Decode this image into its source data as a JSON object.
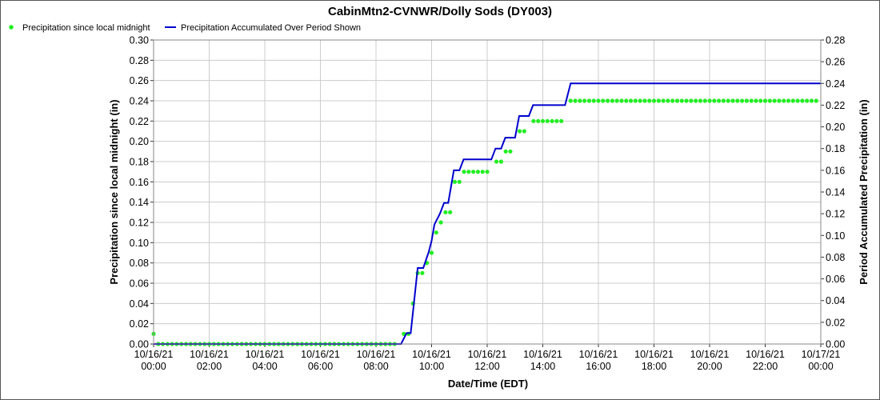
{
  "chart_data": {
    "type": "line",
    "title": "CabinMtn2-CVNWR/Dolly Sods (DY003)",
    "xlabel": "Date/Time (EDT)",
    "ylabel_left": "Precipitation since local midnight (in)",
    "ylabel_right": "Period Accumulated Precipitation (in)",
    "x_range_hours": [
      0,
      24
    ],
    "ylim_left": [
      0,
      0.3
    ],
    "ylim_right": [
      0,
      0.28
    ],
    "y_ticks_left": [
      "0.00",
      "0.02",
      "0.04",
      "0.06",
      "0.08",
      "0.10",
      "0.12",
      "0.14",
      "0.16",
      "0.18",
      "0.20",
      "0.22",
      "0.24",
      "0.26",
      "0.28",
      "0.30"
    ],
    "y_ticks_right": [
      "0.00",
      "0.02",
      "0.04",
      "0.06",
      "0.08",
      "0.10",
      "0.12",
      "0.14",
      "0.16",
      "0.18",
      "0.20",
      "0.22",
      "0.24",
      "0.26",
      "0.28"
    ],
    "x_ticks": [
      {
        "hour": 0,
        "date": "10/16/21",
        "time": "00:00"
      },
      {
        "hour": 2,
        "date": "10/16/21",
        "time": "02:00"
      },
      {
        "hour": 4,
        "date": "10/16/21",
        "time": "04:00"
      },
      {
        "hour": 6,
        "date": "10/16/21",
        "time": "06:00"
      },
      {
        "hour": 8,
        "date": "10/16/21",
        "time": "08:00"
      },
      {
        "hour": 10,
        "date": "10/16/21",
        "time": "10:00"
      },
      {
        "hour": 12,
        "date": "10/16/21",
        "time": "12:00"
      },
      {
        "hour": 14,
        "date": "10/16/21",
        "time": "14:00"
      },
      {
        "hour": 16,
        "date": "10/16/21",
        "time": "16:00"
      },
      {
        "hour": 18,
        "date": "10/16/21",
        "time": "18:00"
      },
      {
        "hour": 20,
        "date": "10/16/21",
        "time": "20:00"
      },
      {
        "hour": 22,
        "date": "10/16/21",
        "time": "22:00"
      },
      {
        "hour": 24,
        "date": "10/17/21",
        "time": "00:00"
      }
    ],
    "grid": true,
    "legend_position": "top-left",
    "series": [
      {
        "name": "Precipitation since local midnight",
        "style": "points",
        "axis": "left",
        "color": "#22ee22",
        "segments": [
          {
            "from": 0,
            "to": 0,
            "step": 0.1667,
            "value": 0.01
          },
          {
            "from": 0.1667,
            "to": 8.8333,
            "step": 0.1667,
            "value": 0.0
          },
          {
            "from": 9.0,
            "to": 9.1667,
            "step": 0.1667,
            "value": 0.01
          },
          {
            "from": 9.3333,
            "to": 9.3333,
            "step": 0.1667,
            "value": 0.04
          },
          {
            "from": 9.5,
            "to": 9.6667,
            "step": 0.1667,
            "value": 0.07
          },
          {
            "from": 9.8333,
            "to": 9.8333,
            "step": 0.1667,
            "value": 0.08
          },
          {
            "from": 10.0,
            "to": 10.0,
            "step": 0.1667,
            "value": 0.09
          },
          {
            "from": 10.1667,
            "to": 10.1667,
            "step": 0.1667,
            "value": 0.11
          },
          {
            "from": 10.3333,
            "to": 10.3333,
            "step": 0.1667,
            "value": 0.12
          },
          {
            "from": 10.5,
            "to": 10.6667,
            "step": 0.1667,
            "value": 0.13
          },
          {
            "from": 10.8333,
            "to": 11.0,
            "step": 0.1667,
            "value": 0.16
          },
          {
            "from": 11.1667,
            "to": 12.1667,
            "step": 0.1667,
            "value": 0.17
          },
          {
            "from": 12.3333,
            "to": 12.5,
            "step": 0.1667,
            "value": 0.18
          },
          {
            "from": 12.6667,
            "to": 13.0,
            "step": 0.1667,
            "value": 0.19
          },
          {
            "from": 13.1667,
            "to": 13.5,
            "step": 0.1667,
            "value": 0.21
          },
          {
            "from": 13.6667,
            "to": 14.8333,
            "step": 0.1667,
            "value": 0.22
          },
          {
            "from": 15.0,
            "to": 24.0,
            "step": 0.1667,
            "value": 0.24
          }
        ]
      },
      {
        "name": "Precipitation Accumulated Over Period Shown",
        "style": "line",
        "axis": "right",
        "color": "#0000cc",
        "points": [
          [
            0,
            0
          ],
          [
            8.9,
            0
          ],
          [
            9.1,
            0.01
          ],
          [
            9.25,
            0.01
          ],
          [
            9.5,
            0.07
          ],
          [
            9.7,
            0.07
          ],
          [
            9.9,
            0.085
          ],
          [
            10.0,
            0.095
          ],
          [
            10.1,
            0.11
          ],
          [
            10.3,
            0.12
          ],
          [
            10.45,
            0.13
          ],
          [
            10.6,
            0.13
          ],
          [
            10.8,
            0.16
          ],
          [
            11.0,
            0.16
          ],
          [
            11.15,
            0.17
          ],
          [
            12.15,
            0.17
          ],
          [
            12.3,
            0.18
          ],
          [
            12.5,
            0.18
          ],
          [
            12.65,
            0.19
          ],
          [
            13.0,
            0.19
          ],
          [
            13.15,
            0.21
          ],
          [
            13.5,
            0.21
          ],
          [
            13.65,
            0.22
          ],
          [
            14.8,
            0.22
          ],
          [
            15.0,
            0.24
          ],
          [
            24.0,
            0.24
          ]
        ]
      }
    ]
  }
}
